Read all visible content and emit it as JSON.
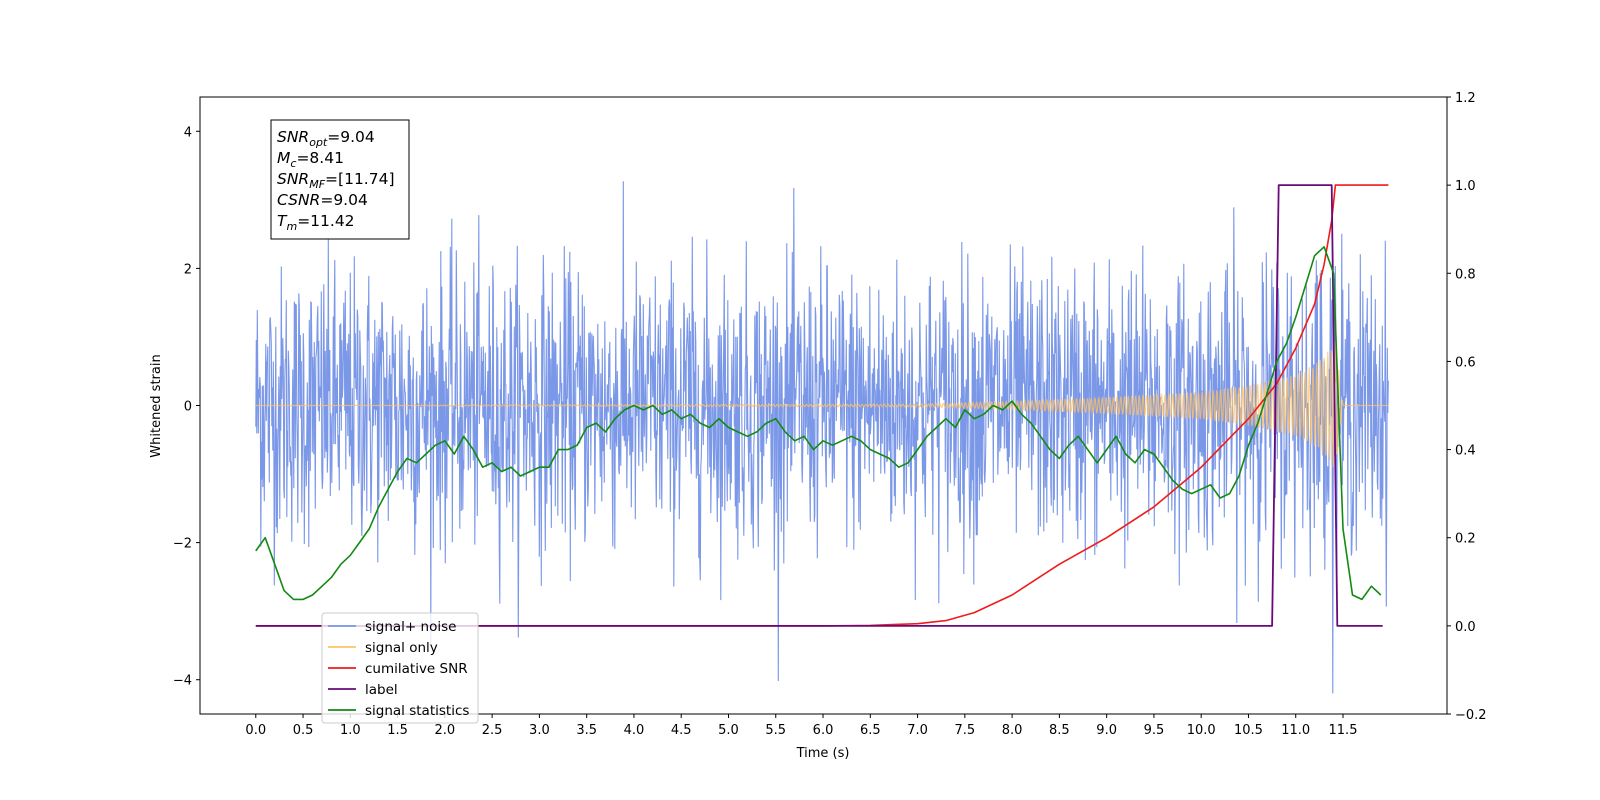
{
  "chart_data": {
    "type": "line",
    "xlabel": "Time (s)",
    "ylabel": "Whitened strain",
    "x_ticks": [
      "0.0",
      "0.5",
      "1.0",
      "1.5",
      "2.0",
      "2.5",
      "3.0",
      "3.5",
      "4.0",
      "4.5",
      "5.0",
      "5.5",
      "6.0",
      "6.5",
      "7.0",
      "7.5",
      "8.0",
      "8.5",
      "9.0",
      "9.5",
      "10.0",
      "10.5",
      "11.0",
      "11.5"
    ],
    "xlim": [
      -0.59,
      12.6
    ],
    "ylim_left": [
      -4.5,
      4.5
    ],
    "y_ticks_left": [
      "−4",
      "−2",
      "0",
      "2",
      "4"
    ],
    "ylim_right": [
      -0.2,
      1.2
    ],
    "y_ticks_right": [
      "−0.2",
      "0.0",
      "0.2",
      "0.4",
      "0.6",
      "0.8",
      "1.0",
      "1.2"
    ],
    "legend_position": "lower-left",
    "info_box": {
      "lines": [
        {
          "name": "SNR",
          "sub": "opt",
          "value": "=9.04"
        },
        {
          "name": "M",
          "sub": "c",
          "value": "=8.41"
        },
        {
          "name": "SNR",
          "sub": "MF",
          "value": "=[11.74]"
        },
        {
          "name": "CSNR",
          "sub": "",
          "value": "=9.04"
        },
        {
          "name": "T",
          "sub": "m",
          "value": "=11.42"
        }
      ]
    },
    "series": [
      {
        "name": "signal+ noise",
        "axis": "left",
        "color": "#7a97e8",
        "description_range": [
          -3.0,
          4.0
        ],
        "x_range": [
          0.0,
          11.98
        ],
        "noise_sigma": 1.0
      },
      {
        "name": "signal only",
        "axis": "left",
        "color": "#ffc266",
        "envelope": {
          "x": [
            0.0,
            7.0,
            8.0,
            9.0,
            10.0,
            10.5,
            11.0,
            11.2,
            11.35,
            11.42,
            11.5,
            11.98
          ],
          "amp": [
            0.0,
            0.02,
            0.06,
            0.12,
            0.2,
            0.3,
            0.45,
            0.6,
            0.8,
            0.95,
            0.0,
            0.0
          ]
        }
      },
      {
        "name": "cumilative SNR",
        "axis": "right",
        "color": "#ee1c1c",
        "x": [
          0.0,
          6.0,
          6.5,
          7.0,
          7.3,
          7.6,
          8.0,
          8.5,
          9.0,
          9.5,
          10.0,
          10.5,
          10.8,
          11.0,
          11.2,
          11.3,
          11.38,
          11.42,
          11.98
        ],
        "values": [
          0.0,
          0.0,
          0.001,
          0.005,
          0.012,
          0.03,
          0.07,
          0.14,
          0.2,
          0.27,
          0.36,
          0.47,
          0.55,
          0.63,
          0.73,
          0.82,
          0.92,
          1.0,
          1.0
        ]
      },
      {
        "name": "label",
        "axis": "right",
        "color": "#6a0a7a",
        "x": [
          0.0,
          10.75,
          10.82,
          11.38,
          11.44,
          11.92
        ],
        "values": [
          0.0,
          0.0,
          1.0,
          1.0,
          0.0,
          0.0
        ]
      },
      {
        "name": "signal statistics",
        "axis": "right",
        "color": "#138a13",
        "x": [
          0.0,
          0.1,
          0.2,
          0.3,
          0.4,
          0.5,
          0.6,
          0.7,
          0.8,
          0.9,
          1.0,
          1.1,
          1.2,
          1.3,
          1.4,
          1.5,
          1.6,
          1.7,
          1.8,
          1.9,
          2.0,
          2.1,
          2.2,
          2.3,
          2.4,
          2.5,
          2.6,
          2.7,
          2.8,
          2.9,
          3.0,
          3.1,
          3.2,
          3.3,
          3.4,
          3.5,
          3.6,
          3.7,
          3.8,
          3.9,
          4.0,
          4.1,
          4.2,
          4.3,
          4.4,
          4.5,
          4.6,
          4.7,
          4.8,
          4.9,
          5.0,
          5.1,
          5.2,
          5.3,
          5.4,
          5.5,
          5.6,
          5.7,
          5.8,
          5.9,
          6.0,
          6.1,
          6.2,
          6.3,
          6.4,
          6.5,
          6.6,
          6.7,
          6.8,
          6.9,
          7.0,
          7.1,
          7.2,
          7.3,
          7.4,
          7.5,
          7.6,
          7.7,
          7.8,
          7.9,
          8.0,
          8.1,
          8.2,
          8.3,
          8.4,
          8.5,
          8.6,
          8.7,
          8.8,
          8.9,
          9.0,
          9.1,
          9.2,
          9.3,
          9.4,
          9.5,
          9.6,
          9.7,
          9.8,
          9.9,
          10.0,
          10.1,
          10.2,
          10.3,
          10.4,
          10.5,
          10.6,
          10.7,
          10.8,
          10.9,
          11.0,
          11.1,
          11.2,
          11.3,
          11.4,
          11.5,
          11.6,
          11.7,
          11.8,
          11.9
        ],
        "values": [
          0.17,
          0.2,
          0.14,
          0.08,
          0.06,
          0.06,
          0.07,
          0.09,
          0.11,
          0.14,
          0.16,
          0.19,
          0.22,
          0.27,
          0.31,
          0.35,
          0.38,
          0.37,
          0.39,
          0.41,
          0.42,
          0.39,
          0.43,
          0.4,
          0.36,
          0.37,
          0.35,
          0.36,
          0.34,
          0.35,
          0.36,
          0.36,
          0.4,
          0.4,
          0.41,
          0.45,
          0.46,
          0.44,
          0.47,
          0.49,
          0.5,
          0.49,
          0.5,
          0.48,
          0.49,
          0.47,
          0.48,
          0.46,
          0.45,
          0.47,
          0.45,
          0.44,
          0.43,
          0.44,
          0.46,
          0.47,
          0.44,
          0.42,
          0.43,
          0.4,
          0.42,
          0.41,
          0.42,
          0.43,
          0.42,
          0.4,
          0.39,
          0.38,
          0.36,
          0.37,
          0.4,
          0.43,
          0.45,
          0.47,
          0.45,
          0.49,
          0.47,
          0.48,
          0.5,
          0.49,
          0.51,
          0.48,
          0.46,
          0.43,
          0.4,
          0.38,
          0.41,
          0.43,
          0.4,
          0.37,
          0.4,
          0.43,
          0.39,
          0.37,
          0.4,
          0.39,
          0.36,
          0.33,
          0.31,
          0.3,
          0.31,
          0.32,
          0.29,
          0.3,
          0.34,
          0.41,
          0.46,
          0.53,
          0.6,
          0.64,
          0.7,
          0.77,
          0.84,
          0.86,
          0.8,
          0.22,
          0.07,
          0.06,
          0.09,
          0.07
        ]
      }
    ]
  }
}
